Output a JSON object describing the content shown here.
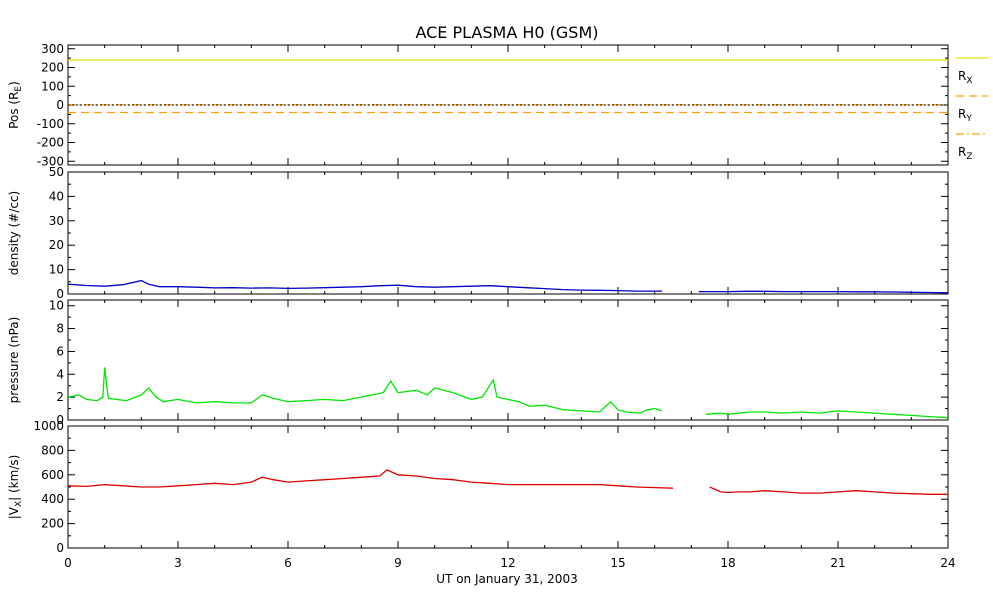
{
  "title": "ACE PLASMA H0 (GSM)",
  "xlabel": "UT on January 31, 2003",
  "x_ticks": [
    "0",
    "3",
    "6",
    "9",
    "12",
    "15",
    "18",
    "21",
    "24"
  ],
  "chart_data": [
    {
      "type": "line",
      "ylabel_main": "Pos (R",
      "ylabel_sub": "E",
      "ylabel_close": ")",
      "ylim": [
        -320,
        320
      ],
      "y_ticks": [
        -300,
        -200,
        -100,
        0,
        100,
        200,
        300
      ],
      "series": [
        {
          "name": "R",
          "sub": "X",
          "color": "#e8e000",
          "dash": "",
          "x": [
            0,
            24
          ],
          "y": [
            240,
            240
          ]
        },
        {
          "name": "R",
          "sub": "Y",
          "color": "#ffa000",
          "dash": "8,5",
          "x": [
            0,
            24
          ],
          "y": [
            -40,
            -40
          ]
        },
        {
          "name": "R",
          "sub": "Z",
          "color": "#ffa000",
          "dash": "8,3,2,3",
          "x": [
            0,
            24
          ],
          "y": [
            2,
            2
          ]
        }
      ]
    },
    {
      "type": "line",
      "ylabel": "density (#/cc)",
      "ylim": [
        0,
        50
      ],
      "y_ticks": [
        0,
        10,
        20,
        30,
        40,
        50
      ],
      "series": [
        {
          "color": "#0000c8",
          "x": [
            0,
            0.5,
            1,
            1.5,
            2,
            2.2,
            2.5,
            3,
            3.5,
            4,
            4.5,
            5,
            5.5,
            6,
            6.5,
            7,
            7.5,
            8,
            8.5,
            9,
            9.5,
            10,
            10.5,
            11,
            11.5,
            12,
            12.5,
            13,
            13.5,
            14,
            14.5,
            15,
            15.5,
            16,
            16.2,
            null,
            17.2,
            17.5,
            18,
            18.5,
            19,
            19.5,
            20,
            20.5,
            21,
            21.5,
            22,
            22.5,
            23,
            23.5,
            24
          ],
          "y": [
            4,
            3.5,
            3.2,
            3.8,
            5.5,
            4,
            3,
            3,
            2.8,
            2.5,
            2.6,
            2.4,
            2.5,
            2.3,
            2.4,
            2.6,
            2.8,
            3,
            3.4,
            3.6,
            3,
            2.8,
            3,
            3.2,
            3.4,
            3,
            2.6,
            2.2,
            1.8,
            1.6,
            1.5,
            1.4,
            1.2,
            1.2,
            1.2,
            null,
            1,
            1,
            1,
            1.1,
            1.1,
            1,
            1,
            1,
            1,
            0.9,
            0.9,
            0.8,
            0.7,
            0.6,
            0.5
          ]
        }
      ]
    },
    {
      "type": "line",
      "ylabel": "pressure (nPa)",
      "ylim": [
        0,
        10.5
      ],
      "y_ticks": [
        0,
        2,
        4,
        6,
        8,
        10
      ],
      "series": [
        {
          "color": "#00e600",
          "x": [
            0,
            0.3,
            0.5,
            0.8,
            0.95,
            1.0,
            1.1,
            1.3,
            1.6,
            2.0,
            2.2,
            2.4,
            2.6,
            3,
            3.5,
            4,
            4.5,
            5,
            5.3,
            5.6,
            6,
            6.5,
            7,
            7.5,
            8,
            8.3,
            8.6,
            8.8,
            9,
            9.5,
            9.8,
            10,
            10.5,
            11,
            11.3,
            11.6,
            11.7,
            12,
            12.3,
            12.6,
            13,
            13.5,
            14,
            14.5,
            14.8,
            15,
            15.2,
            15.6,
            15.8,
            16,
            16.2,
            null,
            17.4,
            17.8,
            18,
            18.3,
            18.6,
            19,
            19.5,
            20,
            20.5,
            21,
            21.5,
            22,
            22.5,
            23,
            23.5,
            24
          ],
          "y": [
            2.0,
            2.2,
            1.8,
            1.7,
            2.0,
            4.6,
            1.9,
            1.8,
            1.7,
            2.2,
            2.8,
            2.0,
            1.6,
            1.8,
            1.5,
            1.6,
            1.5,
            1.5,
            2.2,
            1.9,
            1.6,
            1.7,
            1.8,
            1.7,
            2.0,
            2.2,
            2.4,
            3.4,
            2.4,
            2.6,
            2.2,
            2.8,
            2.4,
            1.8,
            2.0,
            3.5,
            2.0,
            1.8,
            1.6,
            1.2,
            1.3,
            0.9,
            0.8,
            0.7,
            1.6,
            0.9,
            0.7,
            0.6,
            0.9,
            1.0,
            0.8,
            null,
            0.5,
            0.6,
            0.5,
            0.6,
            0.7,
            0.7,
            0.6,
            0.7,
            0.6,
            0.8,
            0.7,
            0.6,
            0.5,
            0.4,
            0.3,
            0.2
          ]
        }
      ]
    },
    {
      "type": "line",
      "ylabel_main": "|V",
      "ylabel_sub": "X",
      "ylabel_close": "| (km/s)",
      "ylim": [
        0,
        1000
      ],
      "y_ticks": [
        0,
        200,
        400,
        600,
        800,
        1000
      ],
      "series": [
        {
          "color": "#e00000",
          "x": [
            0,
            0.5,
            1,
            1.5,
            2,
            2.5,
            3,
            3.5,
            4,
            4.5,
            5,
            5.3,
            5.6,
            6,
            6.5,
            7,
            7.5,
            8,
            8.5,
            8.7,
            9,
            9.5,
            10,
            10.5,
            11,
            11.5,
            12,
            12.5,
            13,
            13.5,
            14,
            14.5,
            15,
            15.5,
            16,
            16.5,
            null,
            17.5,
            17.8,
            18,
            18.3,
            18.6,
            19,
            19.5,
            20,
            20.5,
            21,
            21.5,
            22,
            22.5,
            23,
            23.5,
            24
          ],
          "y": [
            510,
            505,
            520,
            510,
            500,
            500,
            510,
            520,
            530,
            520,
            540,
            580,
            560,
            540,
            550,
            560,
            570,
            580,
            590,
            640,
            600,
            590,
            570,
            560,
            540,
            530,
            520,
            520,
            520,
            520,
            520,
            520,
            510,
            500,
            495,
            490,
            null,
            500,
            460,
            455,
            460,
            460,
            470,
            460,
            450,
            450,
            460,
            470,
            460,
            450,
            445,
            440,
            440
          ]
        }
      ]
    }
  ]
}
